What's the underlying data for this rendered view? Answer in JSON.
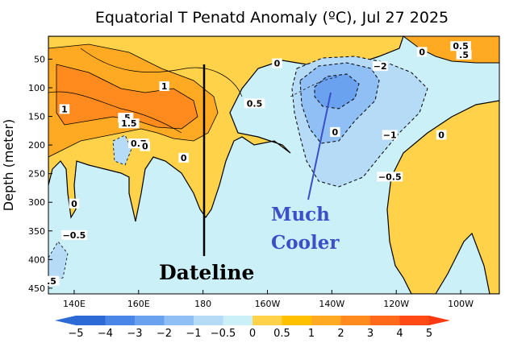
{
  "chart_data": {
    "type": "heatmap",
    "title": "Equatorial T Penatd Anomaly (ºC), Jul 27 2025",
    "ylabel": "Depth (meter)",
    "xlabel": "",
    "x_ticks": [
      "140E",
      "160E",
      "180",
      "160W",
      "140W",
      "120W",
      "100W"
    ],
    "x_range_deg": [
      132,
      272
    ],
    "y_ticks": [
      50,
      100,
      150,
      200,
      250,
      300,
      350,
      400,
      450
    ],
    "y_range": [
      10,
      460
    ],
    "colorbar_levels": [
      -5,
      -4,
      -3,
      -2,
      -1,
      -0.5,
      0,
      0.5,
      1,
      2,
      3,
      4,
      5
    ],
    "colorbar_labels": [
      "−5",
      "−4",
      "−3",
      "−2",
      "−1",
      "−0.5",
      "0",
      "0.5",
      "1",
      "2",
      "3",
      "4",
      "5"
    ],
    "colorbar_colors": [
      "#2d6ad6",
      "#4a86e8",
      "#6aa2f0",
      "#8fbff5",
      "#b5dbf7",
      "#ccf0f8",
      "#ffd24a",
      "#ffc000",
      "#ffaa22",
      "#ff8a1e",
      "#ff6a1a",
      "#ff4a16"
    ],
    "contour_labels": [
      {
        "text": "1",
        "lon": 168,
        "depth": 100
      },
      {
        "text": "1",
        "lon": 137,
        "depth": 140
      },
      {
        "text": ".5",
        "lon": 156,
        "depth": 155
      },
      {
        "text": "1.5",
        "lon": 157,
        "depth": 165
      },
      {
        "text": "0.5",
        "lon": 196,
        "depth": 130
      },
      {
        "text": "0",
        "lon": 203,
        "depth": 60
      },
      {
        "text": "0.7",
        "lon": 160,
        "depth": 200
      },
      {
        "text": "0",
        "lon": 162,
        "depth": 205
      },
      {
        "text": "0",
        "lon": 174,
        "depth": 225
      },
      {
        "text": "0",
        "lon": 140,
        "depth": 305
      },
      {
        "text": "−0.5",
        "lon": 140,
        "depth": 360
      },
      {
        "text": "0",
        "lon": 221,
        "depth": 180
      },
      {
        "text": "−2",
        "lon": 235,
        "depth": 65
      },
      {
        "text": "−1",
        "lon": 238,
        "depth": 185
      },
      {
        "text": "−0.5",
        "lon": 238,
        "depth": 258
      },
      {
        "text": "0",
        "lon": 248,
        "depth": 40
      },
      {
        "text": "0.5",
        "lon": 260,
        "depth": 30
      },
      {
        "text": ".5",
        "lon": 261,
        "depth": 45
      },
      {
        "text": "0",
        "lon": 254,
        "depth": 185
      },
      {
        "text": ".5",
        "lon": 133,
        "depth": 440
      }
    ],
    "annotations": {
      "dateline": "Dateline",
      "much": "Much",
      "cooler": "Cooler"
    }
  },
  "colors": {
    "annotation_blue": "#3a4fc8"
  }
}
